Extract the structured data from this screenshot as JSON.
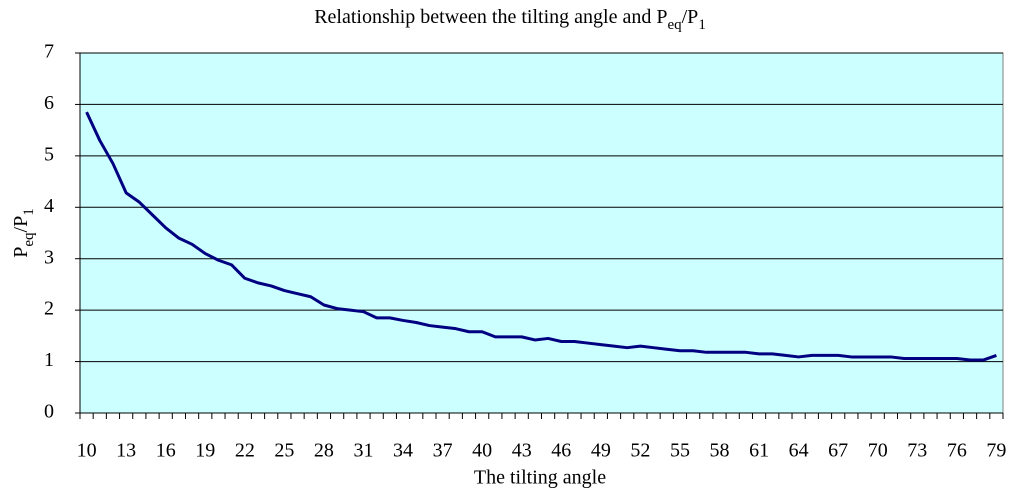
{
  "chart_data": {
    "type": "line",
    "title": [
      "Relationship between the tilting angle and P",
      "eq",
      "/P",
      "1"
    ],
    "xlabel": "The tilting angle",
    "ylabel": [
      "P",
      "eq",
      "/P",
      "1"
    ],
    "categories": [
      "10",
      null,
      null,
      "13",
      null,
      null,
      "16",
      null,
      null,
      "19",
      null,
      null,
      "22",
      null,
      null,
      "25",
      null,
      null,
      "28",
      null,
      null,
      "31",
      null,
      null,
      "34",
      null,
      null,
      "37",
      null,
      null,
      "40",
      null,
      null,
      "43",
      null,
      null,
      "46",
      null,
      null,
      "49",
      null,
      null,
      "52",
      null,
      null,
      "55",
      null,
      null,
      "58",
      null,
      null,
      "61",
      null,
      null,
      "64",
      null,
      null,
      "67",
      null,
      null,
      "70",
      null,
      null,
      "73",
      null,
      null,
      "76",
      null,
      null,
      "79"
    ],
    "values": [
      5.85,
      5.3,
      4.85,
      4.28,
      4.1,
      3.85,
      3.6,
      3.4,
      3.28,
      3.1,
      2.97,
      2.88,
      2.62,
      2.53,
      2.47,
      2.38,
      2.32,
      2.26,
      2.1,
      2.03,
      2.0,
      1.97,
      1.85,
      1.85,
      1.8,
      1.76,
      1.7,
      1.67,
      1.64,
      1.58,
      1.58,
      1.48,
      1.48,
      1.48,
      1.42,
      1.45,
      1.39,
      1.39,
      1.36,
      1.33,
      1.3,
      1.27,
      1.3,
      1.27,
      1.24,
      1.21,
      1.21,
      1.18,
      1.18,
      1.18,
      1.18,
      1.15,
      1.15,
      1.12,
      1.09,
      1.12,
      1.12,
      1.12,
      1.09,
      1.09,
      1.09,
      1.09,
      1.06,
      1.06,
      1.06,
      1.06,
      1.06,
      1.03,
      1.03,
      1.12
    ],
    "color": "#000080",
    "plot_background": "#ccffff",
    "ylim": [
      0,
      7
    ],
    "yticks": [
      0,
      1,
      2,
      3,
      4,
      5,
      6,
      7
    ],
    "grid": true
  }
}
